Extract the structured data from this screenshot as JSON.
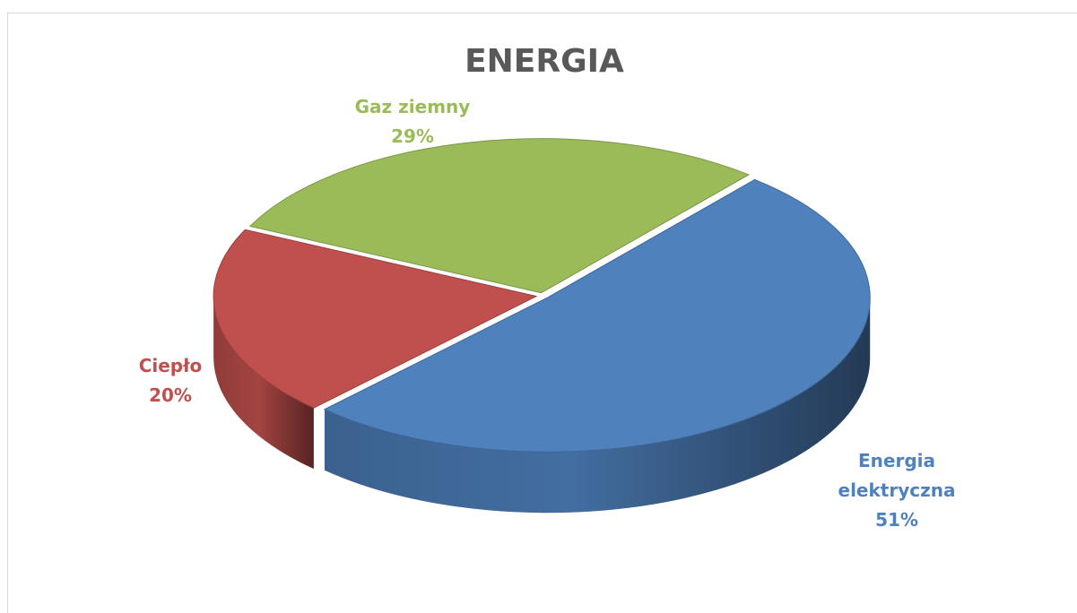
{
  "chart_data": {
    "type": "pie",
    "title": "ENERGIA",
    "categories": [
      "Energia elektryczna",
      "Ciepło",
      "Gaz ziemny"
    ],
    "values": [
      51,
      20,
      29
    ],
    "value_labels": [
      "51%",
      "20%",
      "29%"
    ],
    "colors": [
      "#4f81bd",
      "#c0504d",
      "#9bbb59"
    ]
  }
}
